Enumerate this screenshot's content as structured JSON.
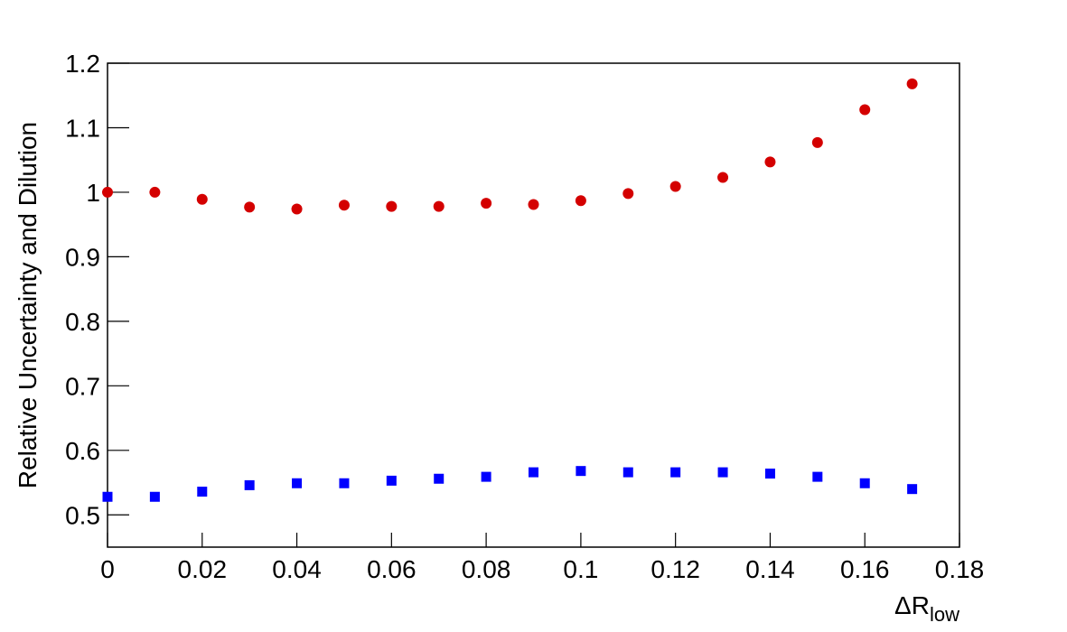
{
  "chart_data": {
    "type": "scatter",
    "y_label": "Relative Uncertainty and Dilution",
    "x_label": "ΔR",
    "x_label_subscript": "low",
    "xlim": [
      0,
      0.18
    ],
    "xticks": [
      0,
      0.02,
      0.04,
      0.06,
      0.08,
      0.1,
      0.12,
      0.14,
      0.16,
      0.18
    ],
    "ylim": [
      0.45,
      1.2
    ],
    "yticks": [
      0.5,
      0.6,
      0.7,
      0.8,
      0.9,
      1,
      1.1,
      1.2
    ],
    "grid": false,
    "series": [
      {
        "color": "#d40000",
        "marker": "circle",
        "x": [
          0,
          0.01,
          0.02,
          0.03,
          0.04,
          0.05,
          0.06,
          0.07,
          0.08,
          0.09,
          0.1,
          0.11,
          0.12,
          0.13,
          0.14,
          0.15,
          0.16,
          0.17
        ],
        "values": [
          1.0,
          1.0,
          0.989,
          0.977,
          0.974,
          0.98,
          0.978,
          0.978,
          0.983,
          0.981,
          0.987,
          0.998,
          1.009,
          1.023,
          1.047,
          1.077,
          1.128,
          1.168
        ]
      },
      {
        "color": "#0000ff",
        "marker": "square",
        "x": [
          0,
          0.01,
          0.02,
          0.03,
          0.04,
          0.05,
          0.06,
          0.07,
          0.08,
          0.09,
          0.1,
          0.11,
          0.12,
          0.13,
          0.14,
          0.15,
          0.16,
          0.17
        ],
        "values": [
          0.528,
          0.528,
          0.536,
          0.546,
          0.549,
          0.549,
          0.553,
          0.556,
          0.559,
          0.566,
          0.568,
          0.566,
          0.566,
          0.566,
          0.564,
          0.559,
          0.549,
          0.54
        ]
      }
    ]
  }
}
